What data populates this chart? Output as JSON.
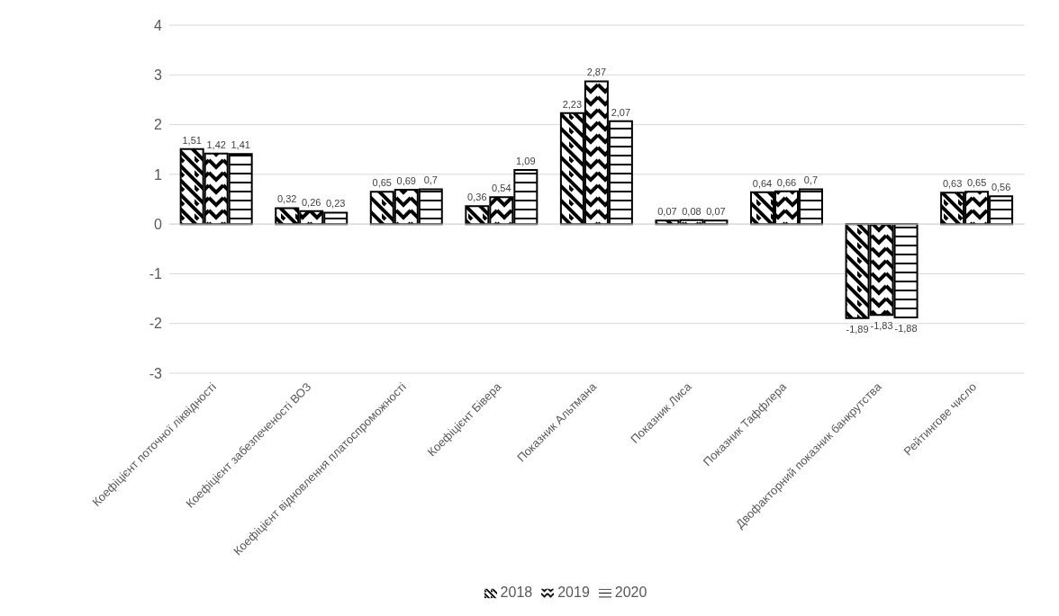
{
  "chart_data": {
    "type": "bar",
    "categories": [
      "Коефіцієнт поточної ліквідності",
      "Коефіцієнт забезпеченості ВОЗ",
      "Коефіцієнт відновлення платоспроможності",
      "Коефіцієнт Бівера",
      "Показник Альтмана",
      "Показник Лиса",
      "Показник Таффлера",
      "Двофакторний показник банкрутства",
      "Рейтингове число"
    ],
    "series": [
      {
        "name": "2018",
        "color": "#000000",
        "values": [
          1.51,
          0.32,
          0.65,
          0.36,
          2.23,
          0.07,
          0.64,
          -1.89,
          0.63
        ],
        "value_labels": [
          "1,51",
          "0,32",
          "0,65",
          "0,36",
          "2,23",
          "0,07",
          "0,64",
          "-1,89",
          "0,63"
        ]
      },
      {
        "name": "2019",
        "color": "#000000",
        "values": [
          1.42,
          0.26,
          0.69,
          0.54,
          2.87,
          0.08,
          0.66,
          -1.83,
          0.65
        ],
        "value_labels": [
          "1,42",
          "0,26",
          "0,69",
          "0,54",
          "2,87",
          "0,08",
          "0,66",
          "-1,83",
          "0,65"
        ]
      },
      {
        "name": "2020",
        "color": "#000000",
        "values": [
          1.41,
          0.23,
          0.7,
          1.09,
          2.07,
          0.07,
          0.7,
          -1.88,
          0.56
        ],
        "value_labels": [
          "1,41",
          "0,23",
          "0,7",
          "1,09",
          "2,07",
          "0,07",
          "0,7",
          "-1,88",
          "0,56"
        ]
      }
    ],
    "ylim": [
      -3,
      4
    ],
    "yticks": [
      -3,
      -2,
      -1,
      0,
      1,
      2,
      3,
      4
    ],
    "grid": "y",
    "legend": "bottom"
  }
}
